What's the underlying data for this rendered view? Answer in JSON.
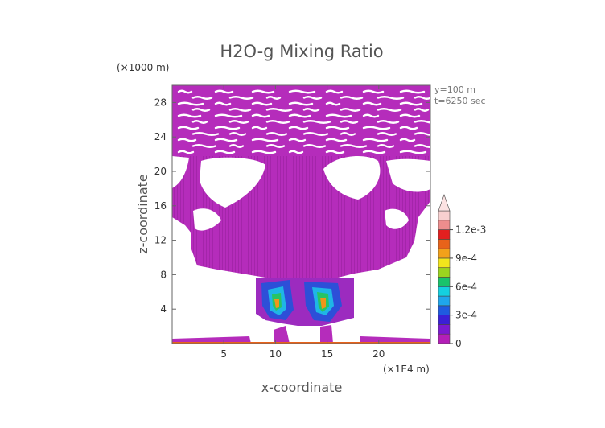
{
  "chart_data": {
    "type": "heatmap",
    "title": "H2O-g Mixing Ratio",
    "xlabel": "x-coordinate",
    "ylabel": "z-coordinate",
    "x_unit": "(×1E4 m)",
    "y_unit": "(×1000 m)",
    "annotation_lines": [
      "y=100 m",
      "t=6250 sec"
    ],
    "x_ticks": [
      5,
      10,
      15,
      20
    ],
    "y_ticks": [
      4,
      8,
      12,
      16,
      20,
      24,
      28
    ],
    "xlim": [
      0,
      25
    ],
    "ylim": [
      0,
      30
    ],
    "colorbar": {
      "ticks": [
        "0",
        "3e-4",
        "6e-4",
        "9e-4",
        "1.2e-3"
      ],
      "levels": [
        0,
        0.0001,
        0.0002,
        0.0003,
        0.0004,
        0.0005,
        0.0006,
        0.0007,
        0.0008,
        0.0009,
        0.001,
        0.0011,
        0.0012,
        0.0013
      ],
      "colors": [
        "#b31fb8",
        "#7a1ad1",
        "#3a1fd6",
        "#1f5ae0",
        "#1fa6ec",
        "#14d0e0",
        "#19c36b",
        "#9bd41f",
        "#f2e51c",
        "#f2a11a",
        "#e8631a",
        "#e21f1f",
        "#ee8d8d",
        "#f8d0d0"
      ]
    }
  }
}
